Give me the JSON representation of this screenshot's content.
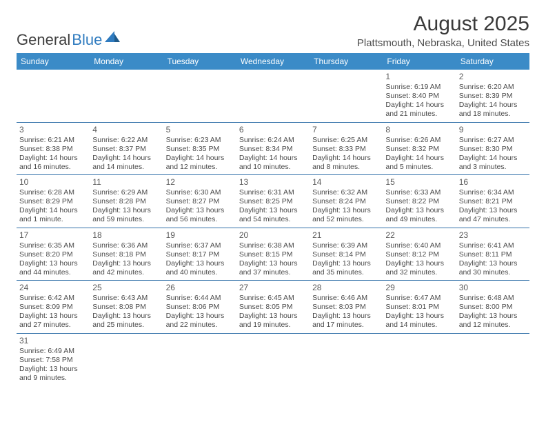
{
  "logo": {
    "word1": "General",
    "word2": "Blue"
  },
  "title": "August 2025",
  "location": "Plattsmouth, Nebraska, United States",
  "colors": {
    "header_bg": "#3b8bc7",
    "header_text": "#ffffff",
    "row_border": "#2f6fa8",
    "body_text": "#4a4a4a",
    "logo_gray": "#404040",
    "logo_blue": "#2f7bbf"
  },
  "day_headers": [
    "Sunday",
    "Monday",
    "Tuesday",
    "Wednesday",
    "Thursday",
    "Friday",
    "Saturday"
  ],
  "weeks": [
    [
      null,
      null,
      null,
      null,
      null,
      {
        "n": "1",
        "sr": "6:19 AM",
        "ss": "8:40 PM",
        "dl": "14 hours and 21 minutes."
      },
      {
        "n": "2",
        "sr": "6:20 AM",
        "ss": "8:39 PM",
        "dl": "14 hours and 18 minutes."
      }
    ],
    [
      {
        "n": "3",
        "sr": "6:21 AM",
        "ss": "8:38 PM",
        "dl": "14 hours and 16 minutes."
      },
      {
        "n": "4",
        "sr": "6:22 AM",
        "ss": "8:37 PM",
        "dl": "14 hours and 14 minutes."
      },
      {
        "n": "5",
        "sr": "6:23 AM",
        "ss": "8:35 PM",
        "dl": "14 hours and 12 minutes."
      },
      {
        "n": "6",
        "sr": "6:24 AM",
        "ss": "8:34 PM",
        "dl": "14 hours and 10 minutes."
      },
      {
        "n": "7",
        "sr": "6:25 AM",
        "ss": "8:33 PM",
        "dl": "14 hours and 8 minutes."
      },
      {
        "n": "8",
        "sr": "6:26 AM",
        "ss": "8:32 PM",
        "dl": "14 hours and 5 minutes."
      },
      {
        "n": "9",
        "sr": "6:27 AM",
        "ss": "8:30 PM",
        "dl": "14 hours and 3 minutes."
      }
    ],
    [
      {
        "n": "10",
        "sr": "6:28 AM",
        "ss": "8:29 PM",
        "dl": "14 hours and 1 minute."
      },
      {
        "n": "11",
        "sr": "6:29 AM",
        "ss": "8:28 PM",
        "dl": "13 hours and 59 minutes."
      },
      {
        "n": "12",
        "sr": "6:30 AM",
        "ss": "8:27 PM",
        "dl": "13 hours and 56 minutes."
      },
      {
        "n": "13",
        "sr": "6:31 AM",
        "ss": "8:25 PM",
        "dl": "13 hours and 54 minutes."
      },
      {
        "n": "14",
        "sr": "6:32 AM",
        "ss": "8:24 PM",
        "dl": "13 hours and 52 minutes."
      },
      {
        "n": "15",
        "sr": "6:33 AM",
        "ss": "8:22 PM",
        "dl": "13 hours and 49 minutes."
      },
      {
        "n": "16",
        "sr": "6:34 AM",
        "ss": "8:21 PM",
        "dl": "13 hours and 47 minutes."
      }
    ],
    [
      {
        "n": "17",
        "sr": "6:35 AM",
        "ss": "8:20 PM",
        "dl": "13 hours and 44 minutes."
      },
      {
        "n": "18",
        "sr": "6:36 AM",
        "ss": "8:18 PM",
        "dl": "13 hours and 42 minutes."
      },
      {
        "n": "19",
        "sr": "6:37 AM",
        "ss": "8:17 PM",
        "dl": "13 hours and 40 minutes."
      },
      {
        "n": "20",
        "sr": "6:38 AM",
        "ss": "8:15 PM",
        "dl": "13 hours and 37 minutes."
      },
      {
        "n": "21",
        "sr": "6:39 AM",
        "ss": "8:14 PM",
        "dl": "13 hours and 35 minutes."
      },
      {
        "n": "22",
        "sr": "6:40 AM",
        "ss": "8:12 PM",
        "dl": "13 hours and 32 minutes."
      },
      {
        "n": "23",
        "sr": "6:41 AM",
        "ss": "8:11 PM",
        "dl": "13 hours and 30 minutes."
      }
    ],
    [
      {
        "n": "24",
        "sr": "6:42 AM",
        "ss": "8:09 PM",
        "dl": "13 hours and 27 minutes."
      },
      {
        "n": "25",
        "sr": "6:43 AM",
        "ss": "8:08 PM",
        "dl": "13 hours and 25 minutes."
      },
      {
        "n": "26",
        "sr": "6:44 AM",
        "ss": "8:06 PM",
        "dl": "13 hours and 22 minutes."
      },
      {
        "n": "27",
        "sr": "6:45 AM",
        "ss": "8:05 PM",
        "dl": "13 hours and 19 minutes."
      },
      {
        "n": "28",
        "sr": "6:46 AM",
        "ss": "8:03 PM",
        "dl": "13 hours and 17 minutes."
      },
      {
        "n": "29",
        "sr": "6:47 AM",
        "ss": "8:01 PM",
        "dl": "13 hours and 14 minutes."
      },
      {
        "n": "30",
        "sr": "6:48 AM",
        "ss": "8:00 PM",
        "dl": "13 hours and 12 minutes."
      }
    ],
    [
      {
        "n": "31",
        "sr": "6:49 AM",
        "ss": "7:58 PM",
        "dl": "13 hours and 9 minutes."
      },
      null,
      null,
      null,
      null,
      null,
      null
    ]
  ],
  "labels": {
    "sunrise": "Sunrise:",
    "sunset": "Sunset:",
    "daylight": "Daylight:"
  }
}
